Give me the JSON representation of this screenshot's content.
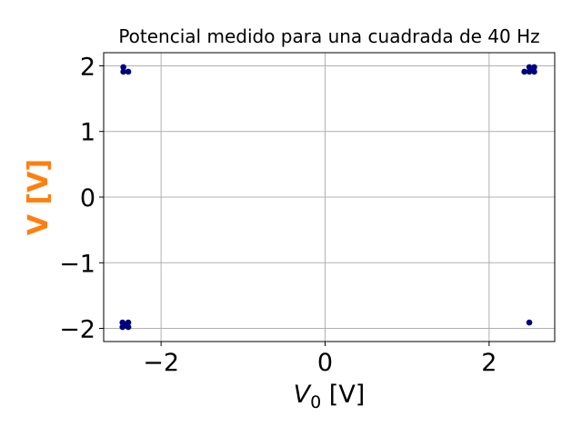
{
  "chart_data": {
    "type": "scatter",
    "title": "Potencial medido para una cuadrada de 40 Hz",
    "xlabel_main": "V",
    "xlabel_sub": "0",
    "xlabel_unit": " [V]",
    "ylabel": "V [V]",
    "ylabel_color": "#ff7f0e",
    "marker_color": "#000080",
    "xlim": [
      -2.7,
      2.8
    ],
    "ylim": [
      -2.2,
      2.2
    ],
    "xticks": [
      -2,
      0,
      2
    ],
    "yticks": [
      -2,
      -1,
      0,
      1,
      2
    ],
    "xtick_labels": [
      "−2",
      "0",
      "2"
    ],
    "ytick_labels": [
      "−2",
      "−1",
      "0",
      "1",
      "2"
    ],
    "grid": true,
    "points": [
      {
        "x": -2.46,
        "y": 1.98
      },
      {
        "x": -2.46,
        "y": 1.91
      },
      {
        "x": -2.4,
        "y": 1.91
      },
      {
        "x": -2.47,
        "y": -1.91
      },
      {
        "x": -2.47,
        "y": -1.98
      },
      {
        "x": -2.4,
        "y": -1.91
      },
      {
        "x": -2.4,
        "y": -1.98
      },
      {
        "x": -2.44,
        "y": -1.95
      },
      {
        "x": 2.43,
        "y": 1.91
      },
      {
        "x": 2.49,
        "y": 1.98
      },
      {
        "x": 2.49,
        "y": 1.91
      },
      {
        "x": 2.55,
        "y": 1.98
      },
      {
        "x": 2.55,
        "y": 1.91
      },
      {
        "x": 2.52,
        "y": 1.95
      },
      {
        "x": 2.49,
        "y": -1.91
      }
    ]
  }
}
